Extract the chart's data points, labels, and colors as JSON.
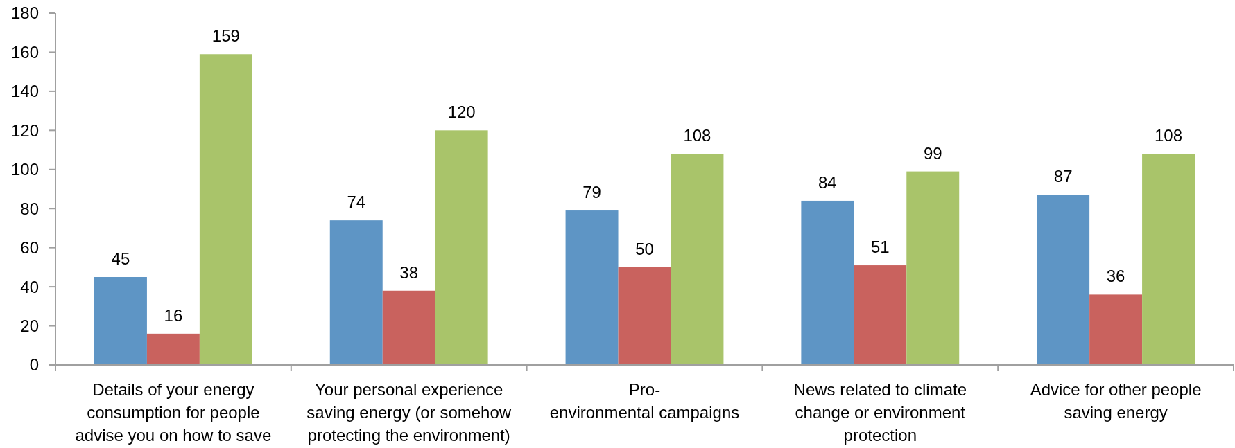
{
  "chart_data": {
    "type": "bar",
    "categories": [
      "Details of your energy consumption for people advise you on how to save",
      "Your personal experience saving energy (or somehow protecting the environment)",
      "Pro-\nenvironmental campaigns",
      "News related to climate change or environment protection",
      "Advice for other people saving energy"
    ],
    "series": [
      {
        "color": "#5e95c5",
        "values": [
          45,
          74,
          79,
          84,
          87
        ]
      },
      {
        "color": "#c9625e",
        "values": [
          16,
          38,
          50,
          51,
          36
        ]
      },
      {
        "color": "#a9c46a",
        "values": [
          159,
          120,
          108,
          99,
          108
        ]
      }
    ],
    "ylim": [
      0,
      180
    ],
    "yticks": [
      0,
      20,
      40,
      60,
      80,
      100,
      120,
      140,
      160,
      180
    ],
    "data_labels": true
  }
}
